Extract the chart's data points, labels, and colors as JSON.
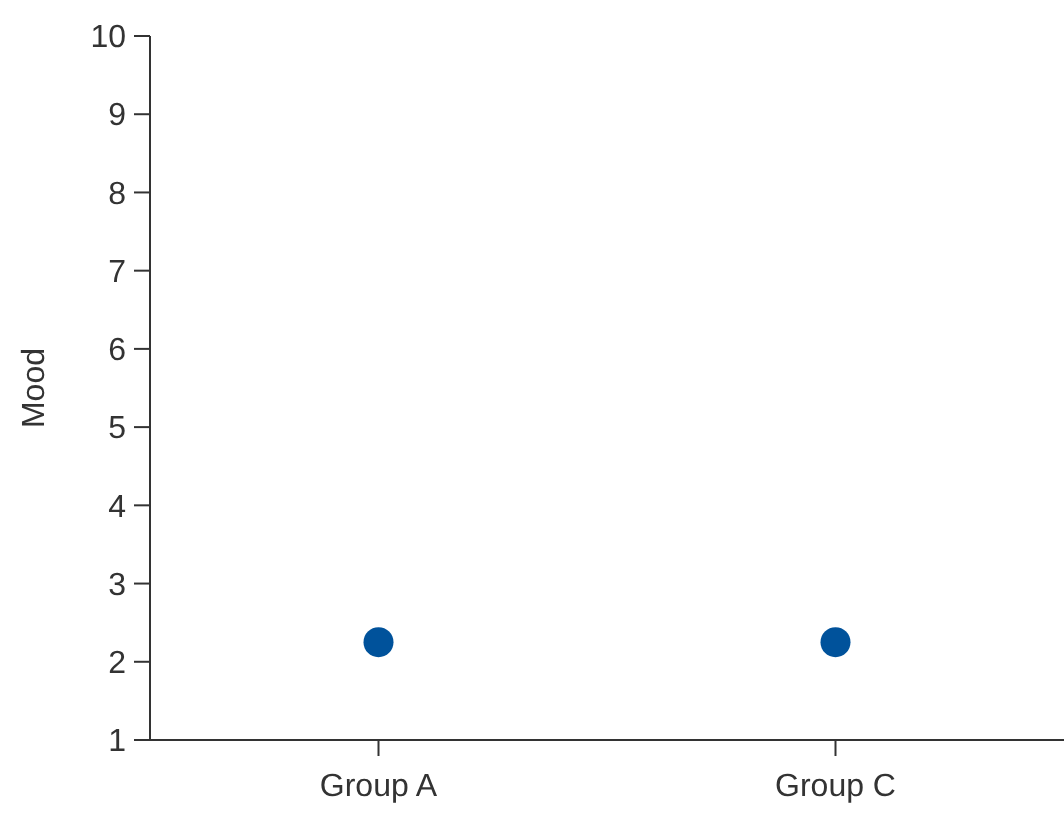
{
  "chart_data": {
    "type": "scatter",
    "ylabel": "Mood",
    "categories": [
      "Group A",
      "Group C"
    ],
    "series": [
      {
        "color": "#00529b",
        "values": [
          2.25,
          2.25
        ]
      }
    ],
    "ylim": [
      1,
      10
    ],
    "yticks": [
      1,
      2,
      3,
      4,
      5,
      6,
      7,
      8,
      9,
      10
    ],
    "marker": "circle"
  }
}
